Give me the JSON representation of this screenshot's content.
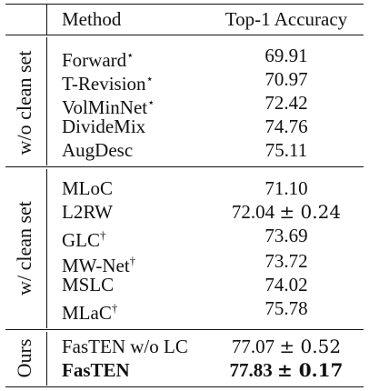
{
  "table": {
    "headers": {
      "method": "Method",
      "metric": "Top-1 Accuracy"
    },
    "groups": [
      {
        "label": "w/o clean set",
        "rows": [
          {
            "method": "Forward",
            "sup": "⋆",
            "value": "69.91",
            "pm": ""
          },
          {
            "method": "T-Revision",
            "sup": "⋆",
            "value": "70.97",
            "pm": ""
          },
          {
            "method": "VolMinNet",
            "sup": "⋆",
            "value": "72.42",
            "pm": ""
          },
          {
            "method": "DivideMix",
            "sup": "",
            "value": "74.76",
            "pm": ""
          },
          {
            "method": "AugDesc",
            "sup": "",
            "value": "75.11",
            "pm": ""
          }
        ]
      },
      {
        "label": "w/ clean set",
        "rows": [
          {
            "method": "MLoC",
            "sup": "",
            "value": "71.10",
            "pm": ""
          },
          {
            "method": "L2RW",
            "sup": "",
            "value": "72.04",
            "pm": "± 0.24"
          },
          {
            "method": "GLC",
            "sup": "†",
            "value": "73.69",
            "pm": ""
          },
          {
            "method": "MW-Net",
            "sup": "†",
            "value": "73.72",
            "pm": ""
          },
          {
            "method": "MSLC",
            "sup": "",
            "value": "74.02",
            "pm": ""
          },
          {
            "method": "MLaC",
            "sup": "†",
            "value": "75.78",
            "pm": ""
          }
        ]
      },
      {
        "label": "Ours",
        "rows": [
          {
            "method": "FasTEN w/o LC",
            "sup": "",
            "value": "77.07",
            "pm": "± 0.52"
          },
          {
            "method": "FasTEN",
            "sup": "",
            "value": "77.83",
            "pm": "± 0.17",
            "bold": true
          }
        ]
      }
    ]
  }
}
